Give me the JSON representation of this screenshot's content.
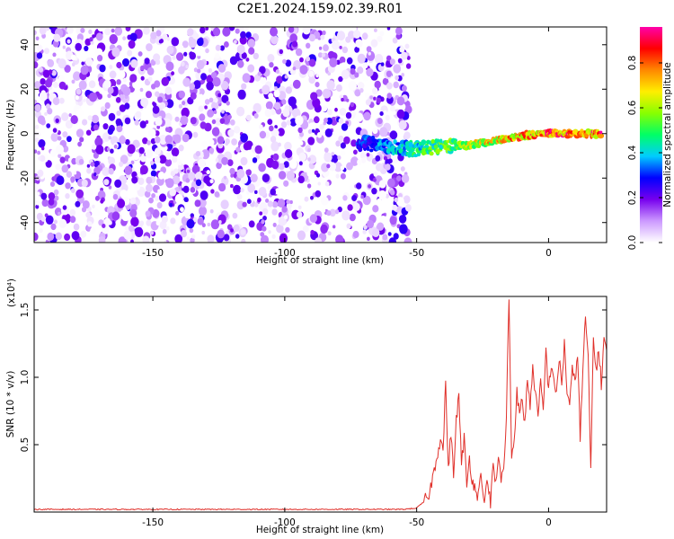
{
  "title": "C2E1.2024.159.02.39.R01",
  "chart_data": [
    {
      "type": "heatmap",
      "xlabel": "Height of straight line (km)",
      "ylabel": "Frequency (Hz)",
      "xlim": [
        -195,
        22
      ],
      "ylim": [
        -49,
        48
      ],
      "x_ticks": [
        -150,
        -100,
        -50,
        0
      ],
      "y_ticks": [
        -40,
        -20,
        0,
        20,
        40
      ],
      "colorbar": {
        "label": "Normalized spectral amplitude",
        "range": [
          0.0,
          0.96
        ],
        "ticks": [
          "0.0",
          "0.2",
          "0.4",
          "0.6",
          "0.8"
        ],
        "colormap": [
          "#ffffff",
          "#cc99ff",
          "#7700ee",
          "#0000ff",
          "#00ccff",
          "#00ff66",
          "#88ff00",
          "#ffee00",
          "#ff8800",
          "#ff0000",
          "#ff00aa"
        ]
      },
      "noise_region_x": [
        -195,
        -53
      ],
      "signal_ridge": {
        "x": [
          -72,
          -60,
          -50,
          -40,
          -30,
          -20,
          -10,
          0,
          10,
          20
        ],
        "frequency": [
          -4,
          -6,
          -7,
          -6,
          -5,
          -3,
          -1,
          0,
          0,
          0
        ]
      }
    },
    {
      "type": "line",
      "xlabel": "Height of straight line (km)",
      "ylabel": "SNR (10 * v/v)",
      "y_multiplier": "(x10⁴)",
      "color": "#e0302a",
      "xlim": [
        -195,
        22
      ],
      "ylim": [
        0,
        1.6
      ],
      "x_ticks": [
        -150,
        -100,
        -50,
        0
      ],
      "y_ticks": [
        0.5,
        1.0,
        1.5
      ],
      "y_tick_labels": [
        "0.5",
        "1.0",
        "1.5"
      ],
      "x": [
        -195,
        -100,
        -55,
        -50,
        -47,
        -45,
        -43,
        -41,
        -40,
        -39,
        -38,
        -37,
        -36,
        -35,
        -34,
        -33,
        -32,
        -31,
        -30,
        -29,
        -28,
        -27,
        -26,
        -25,
        -24,
        -23,
        -22,
        -21,
        -20,
        -19,
        -18,
        -17,
        -16,
        -15,
        -14,
        -13,
        -12,
        -11,
        -10,
        -9,
        -8,
        -7,
        -6,
        -5,
        -4,
        -3,
        -2,
        -1,
        0,
        1,
        2,
        3,
        4,
        5,
        6,
        7,
        8,
        9,
        10,
        11,
        12,
        13,
        14,
        15,
        16,
        17,
        18,
        19,
        20,
        21,
        22
      ],
      "values": [
        0.02,
        0.02,
        0.02,
        0.03,
        0.08,
        0.15,
        0.35,
        0.55,
        0.45,
        0.97,
        0.3,
        0.6,
        0.25,
        0.7,
        0.85,
        0.35,
        0.55,
        0.2,
        0.4,
        0.25,
        0.18,
        0.1,
        0.3,
        0.15,
        0.1,
        0.25,
        0.05,
        0.35,
        0.2,
        0.4,
        0.25,
        0.3,
        0.7,
        1.6,
        0.4,
        0.55,
        0.9,
        0.7,
        0.85,
        0.65,
        1.0,
        0.8,
        1.05,
        0.9,
        0.7,
        0.95,
        0.75,
        1.2,
        0.9,
        1.1,
        1.0,
        0.85,
        1.15,
        0.95,
        1.25,
        0.9,
        0.8,
        1.05,
        0.95,
        1.2,
        0.55,
        1.05,
        1.45,
        1.15,
        0.3,
        1.3,
        1.05,
        1.2,
        0.95,
        1.3,
        1.2
      ]
    }
  ]
}
